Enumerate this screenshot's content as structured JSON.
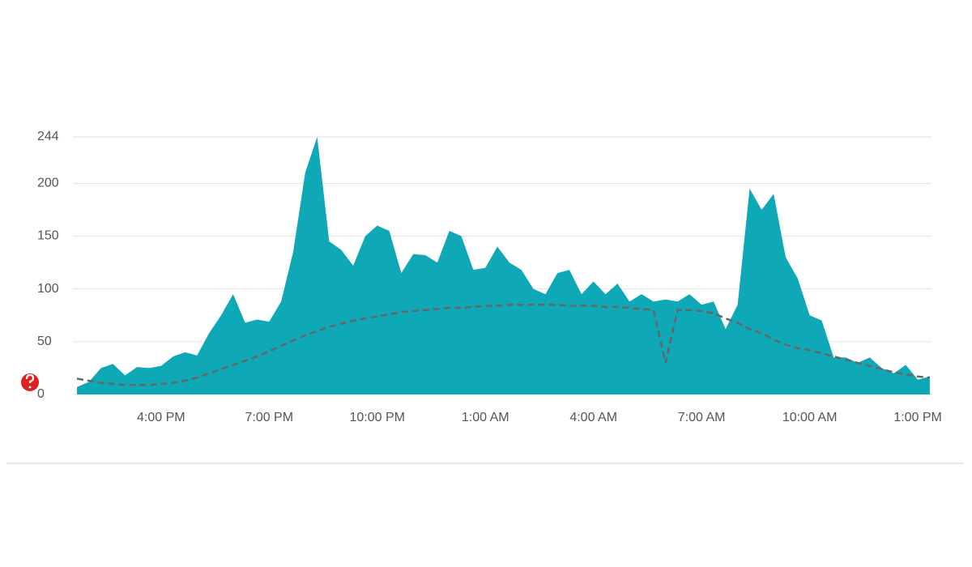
{
  "chart_data": {
    "type": "area",
    "categories": [
      null,
      null,
      null,
      null,
      null,
      null,
      null,
      "4:00 PM",
      null,
      null,
      null,
      null,
      null,
      null,
      null,
      null,
      "7:00 PM",
      null,
      null,
      null,
      null,
      null,
      null,
      null,
      null,
      "10:00 PM",
      null,
      null,
      null,
      null,
      null,
      null,
      null,
      null,
      "1:00 AM",
      null,
      null,
      null,
      null,
      null,
      null,
      null,
      null,
      "4:00 AM",
      null,
      null,
      null,
      null,
      null,
      null,
      null,
      null,
      "7:00 AM",
      null,
      null,
      null,
      null,
      null,
      null,
      null,
      null,
      "10:00 AM",
      null,
      null,
      null,
      null,
      null,
      null,
      null,
      null,
      "1:00 PM",
      null
    ],
    "series": [
      {
        "type": "area",
        "color": "#0fa8b7",
        "values": [
          7,
          12,
          25,
          29,
          18,
          26,
          25,
          27,
          36,
          40,
          37,
          58,
          75,
          95,
          68,
          71,
          69,
          88,
          135,
          210,
          244,
          145,
          137,
          122,
          150,
          160,
          155,
          115,
          133,
          132,
          125,
          155,
          150,
          118,
          120,
          140,
          125,
          118,
          100,
          95,
          115,
          118,
          95,
          107,
          95,
          105,
          88,
          95,
          88,
          90,
          88,
          95,
          85,
          88,
          62,
          85,
          195,
          175,
          190,
          130,
          110,
          75,
          70,
          35,
          35,
          30,
          35,
          25,
          20,
          28,
          14,
          17
        ]
      },
      {
        "type": "dashed-line",
        "color": "#666666",
        "values": [
          15,
          13,
          11,
          10,
          9,
          9,
          9,
          10,
          11,
          13,
          16,
          20,
          24,
          28,
          32,
          36,
          41,
          46,
          51,
          56,
          60,
          64,
          67,
          70,
          72,
          74,
          76,
          78,
          79,
          80,
          81,
          82,
          82,
          83,
          84,
          84,
          85,
          85,
          85,
          85,
          85,
          84,
          84,
          84,
          83,
          83,
          82,
          81,
          80,
          30,
          80,
          80,
          79,
          77,
          72,
          68,
          62,
          58,
          52,
          47,
          44,
          42,
          39,
          36,
          33,
          30,
          27,
          24,
          21,
          19,
          17,
          16
        ]
      }
    ],
    "ylim": [
      0,
      244
    ],
    "yticks": [
      0,
      50,
      100,
      150,
      200,
      244
    ],
    "grid": true
  }
}
